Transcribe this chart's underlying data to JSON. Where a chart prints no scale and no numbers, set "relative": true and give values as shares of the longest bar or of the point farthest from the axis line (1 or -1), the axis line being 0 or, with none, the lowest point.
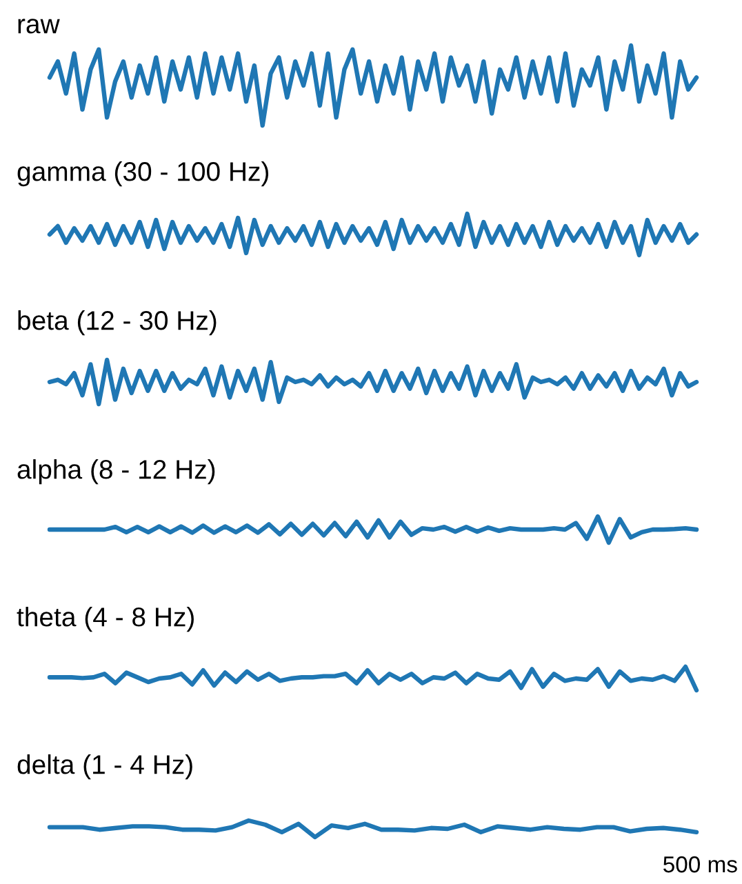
{
  "chart_data": [
    {
      "type": "line",
      "title": "raw",
      "relative": true,
      "color": "#1f77b4",
      "categories": [
        null,
        null,
        null,
        null,
        null,
        null,
        null,
        null,
        null,
        null,
        null,
        null,
        null,
        null,
        null,
        null,
        null,
        null,
        null,
        null,
        null,
        null,
        null,
        null,
        null,
        null,
        null,
        null,
        null,
        null,
        null,
        null,
        null,
        null,
        null,
        null,
        null,
        null,
        null,
        null,
        null,
        null,
        null,
        null,
        null,
        null,
        null,
        null,
        null,
        null,
        null,
        null,
        null,
        null,
        null,
        null,
        null,
        null,
        null,
        null,
        null,
        null,
        null,
        null,
        null,
        null,
        null,
        null,
        null,
        null,
        null,
        null,
        null,
        null,
        null,
        null,
        null,
        null,
        null,
        null
      ],
      "values": [
        0.6,
        0.8,
        0.4,
        0.9,
        0.2,
        0.7,
        0.95,
        0.1,
        0.55,
        0.8,
        0.35,
        0.75,
        0.4,
        0.85,
        0.3,
        0.8,
        0.45,
        0.85,
        0.35,
        0.9,
        0.4,
        0.85,
        0.45,
        0.9,
        0.3,
        0.75,
        0.0,
        0.65,
        0.85,
        0.35,
        0.8,
        0.5,
        0.9,
        0.25,
        0.9,
        0.1,
        0.7,
        0.95,
        0.4,
        0.8,
        0.3,
        0.75,
        0.4,
        0.85,
        0.2,
        0.8,
        0.45,
        0.9,
        0.3,
        0.85,
        0.5,
        0.75,
        0.3,
        0.8,
        0.15,
        0.7,
        0.45,
        0.85,
        0.35,
        0.8,
        0.4,
        0.85,
        0.3,
        0.9,
        0.25,
        0.7,
        0.5,
        0.85,
        0.2,
        0.8,
        0.45,
        1.0,
        0.3,
        0.75,
        0.4,
        0.9,
        0.1,
        0.8,
        0.45,
        0.6
      ]
    },
    {
      "type": "line",
      "title": "gamma (30 - 100 Hz)",
      "relative": true,
      "color": "#1f77b4",
      "categories": [
        null,
        null,
        null,
        null,
        null,
        null,
        null,
        null,
        null,
        null,
        null,
        null,
        null,
        null,
        null,
        null,
        null,
        null,
        null,
        null,
        null,
        null,
        null,
        null,
        null,
        null,
        null,
        null,
        null,
        null,
        null,
        null,
        null,
        null,
        null,
        null,
        null,
        null,
        null,
        null,
        null,
        null,
        null,
        null,
        null,
        null,
        null,
        null,
        null,
        null,
        null,
        null,
        null,
        null,
        null,
        null,
        null,
        null,
        null,
        null,
        null,
        null,
        null,
        null,
        null,
        null,
        null,
        null,
        null,
        null,
        null,
        null,
        null,
        null,
        null,
        null,
        null,
        null,
        null,
        null
      ],
      "values": [
        0.5,
        0.7,
        0.3,
        0.65,
        0.35,
        0.7,
        0.3,
        0.75,
        0.25,
        0.7,
        0.3,
        0.8,
        0.2,
        0.85,
        0.15,
        0.8,
        0.3,
        0.7,
        0.35,
        0.65,
        0.3,
        0.75,
        0.2,
        0.9,
        0.05,
        0.85,
        0.25,
        0.7,
        0.3,
        0.65,
        0.35,
        0.7,
        0.25,
        0.8,
        0.2,
        0.75,
        0.3,
        0.7,
        0.35,
        0.65,
        0.25,
        0.8,
        0.15,
        0.85,
        0.3,
        0.7,
        0.35,
        0.65,
        0.3,
        0.75,
        0.25,
        1.0,
        0.2,
        0.8,
        0.3,
        0.7,
        0.25,
        0.75,
        0.3,
        0.7,
        0.2,
        0.8,
        0.25,
        0.7,
        0.35,
        0.65,
        0.3,
        0.75,
        0.2,
        0.8,
        0.3,
        0.7,
        0.0,
        0.85,
        0.3,
        0.7,
        0.35,
        0.75,
        0.3,
        0.5
      ]
    },
    {
      "type": "line",
      "title": "beta (12 - 30 Hz)",
      "relative": true,
      "color": "#1f77b4",
      "categories": [
        null,
        null,
        null,
        null,
        null,
        null,
        null,
        null,
        null,
        null,
        null,
        null,
        null,
        null,
        null,
        null,
        null,
        null,
        null,
        null,
        null,
        null,
        null,
        null,
        null,
        null,
        null,
        null,
        null,
        null,
        null,
        null,
        null,
        null,
        null,
        null,
        null,
        null,
        null,
        null,
        null,
        null,
        null,
        null,
        null,
        null,
        null,
        null,
        null,
        null,
        null,
        null,
        null,
        null,
        null,
        null,
        null,
        null,
        null,
        null,
        null,
        null,
        null,
        null,
        null,
        null,
        null,
        null,
        null,
        null,
        null,
        null,
        null,
        null,
        null,
        null,
        null,
        null,
        null,
        null
      ],
      "values": [
        0.5,
        0.55,
        0.45,
        0.7,
        0.2,
        0.9,
        0.0,
        1.0,
        0.1,
        0.8,
        0.25,
        0.75,
        0.3,
        0.75,
        0.3,
        0.7,
        0.35,
        0.55,
        0.45,
        0.8,
        0.2,
        0.85,
        0.15,
        0.75,
        0.3,
        0.8,
        0.1,
        0.95,
        0.05,
        0.6,
        0.5,
        0.55,
        0.45,
        0.65,
        0.4,
        0.6,
        0.45,
        0.55,
        0.4,
        0.7,
        0.3,
        0.75,
        0.3,
        0.7,
        0.35,
        0.8,
        0.25,
        0.75,
        0.3,
        0.7,
        0.35,
        0.85,
        0.2,
        0.75,
        0.3,
        0.7,
        0.35,
        0.9,
        0.15,
        0.6,
        0.5,
        0.55,
        0.45,
        0.6,
        0.35,
        0.7,
        0.35,
        0.65,
        0.4,
        0.7,
        0.3,
        0.75,
        0.35,
        0.6,
        0.45,
        0.8,
        0.2,
        0.7,
        0.4,
        0.5
      ]
    },
    {
      "type": "line",
      "title": "alpha (8 - 12 Hz)",
      "relative": true,
      "color": "#1f77b4",
      "categories": [
        null,
        null,
        null,
        null,
        null,
        null,
        null,
        null,
        null,
        null,
        null,
        null,
        null,
        null,
        null,
        null,
        null,
        null,
        null,
        null,
        null,
        null,
        null,
        null,
        null,
        null,
        null,
        null,
        null,
        null,
        null,
        null,
        null,
        null,
        null,
        null,
        null,
        null,
        null,
        null,
        null,
        null,
        null,
        null,
        null,
        null,
        null,
        null,
        null,
        null,
        null,
        null,
        null,
        null,
        null,
        null,
        null,
        null,
        null,
        null
      ],
      "values": [
        0.5,
        0.5,
        0.5,
        0.5,
        0.5,
        0.5,
        0.6,
        0.4,
        0.6,
        0.4,
        0.62,
        0.4,
        0.62,
        0.38,
        0.65,
        0.38,
        0.62,
        0.4,
        0.65,
        0.38,
        0.7,
        0.32,
        0.72,
        0.3,
        0.72,
        0.28,
        0.75,
        0.25,
        0.8,
        0.2,
        0.85,
        0.2,
        0.8,
        0.3,
        0.55,
        0.5,
        0.6,
        0.42,
        0.6,
        0.42,
        0.58,
        0.45,
        0.55,
        0.5,
        0.5,
        0.5,
        0.55,
        0.5,
        0.75,
        0.15,
        1.0,
        0.0,
        0.9,
        0.2,
        0.4,
        0.5,
        0.5,
        0.52,
        0.55,
        0.5
      ]
    },
    {
      "type": "line",
      "title": "theta (4 - 8 Hz)",
      "relative": true,
      "color": "#1f77b4",
      "categories": [
        null,
        null,
        null,
        null,
        null,
        null,
        null,
        null,
        null,
        null,
        null,
        null,
        null,
        null,
        null,
        null,
        null,
        null,
        null,
        null,
        null,
        null,
        null,
        null,
        null,
        null,
        null,
        null,
        null,
        null,
        null,
        null,
        null,
        null,
        null,
        null,
        null,
        null,
        null,
        null,
        null,
        null,
        null,
        null,
        null,
        null,
        null,
        null,
        null,
        null,
        null,
        null,
        null,
        null,
        null,
        null,
        null,
        null,
        null,
        null
      ],
      "values": [
        0.55,
        0.55,
        0.55,
        0.52,
        0.55,
        0.7,
        0.3,
        0.75,
        0.55,
        0.35,
        0.5,
        0.55,
        0.7,
        0.25,
        0.85,
        0.2,
        0.75,
        0.35,
        0.8,
        0.45,
        0.7,
        0.4,
        0.5,
        0.55,
        0.55,
        0.6,
        0.6,
        0.7,
        0.3,
        0.85,
        0.3,
        0.7,
        0.45,
        0.7,
        0.3,
        0.55,
        0.5,
        0.75,
        0.3,
        0.7,
        0.5,
        0.45,
        0.8,
        0.1,
        0.9,
        0.15,
        0.7,
        0.4,
        0.5,
        0.45,
        0.9,
        0.15,
        0.8,
        0.4,
        0.5,
        0.45,
        0.6,
        0.4,
        1.0,
        0.0
      ]
    },
    {
      "type": "line",
      "title": "delta (1 - 4 Hz)",
      "relative": true,
      "color": "#1f77b4",
      "annotations": [
        "500 ms"
      ],
      "categories": [
        null,
        null,
        null,
        null,
        null,
        null,
        null,
        null,
        null,
        null,
        null,
        null,
        null,
        null,
        null,
        null,
        null,
        null,
        null,
        null,
        null,
        null,
        null,
        null,
        null,
        null,
        null,
        null,
        null,
        null,
        null,
        null,
        null,
        null,
        null,
        null,
        null,
        null,
        null,
        null
      ],
      "values": [
        0.6,
        0.6,
        0.6,
        0.45,
        0.55,
        0.65,
        0.65,
        0.6,
        0.45,
        0.45,
        0.4,
        0.6,
        1.0,
        0.75,
        0.3,
        0.8,
        0.0,
        0.7,
        0.55,
        0.8,
        0.45,
        0.45,
        0.4,
        0.55,
        0.5,
        0.75,
        0.3,
        0.65,
        0.55,
        0.45,
        0.6,
        0.5,
        0.45,
        0.6,
        0.6,
        0.35,
        0.5,
        0.55,
        0.45,
        0.3
      ]
    }
  ]
}
